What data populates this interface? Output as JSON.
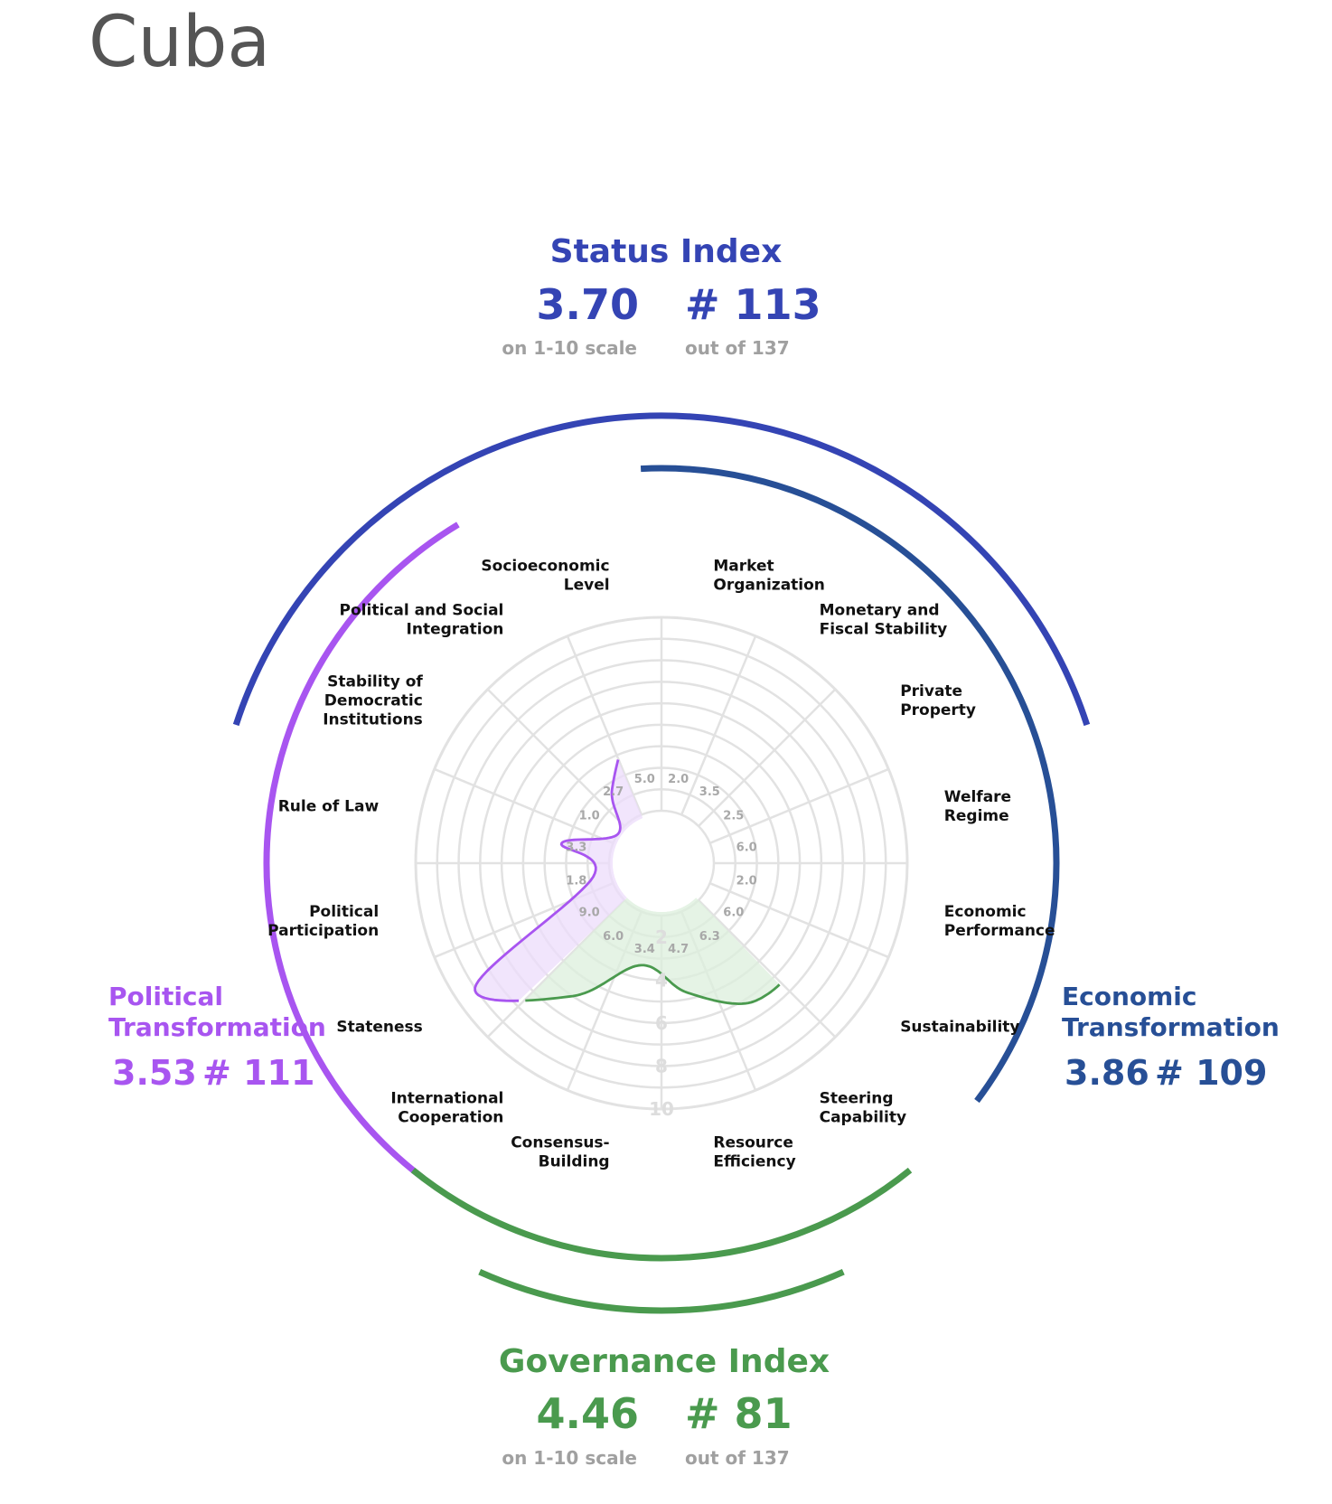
{
  "title": "Cuba",
  "status_index": {
    "label": "Status Index",
    "score": "3.70",
    "rank": "# 113",
    "score_note": "on 1-10 scale",
    "rank_note": "out of 137",
    "color": "#3444b4"
  },
  "governance_index": {
    "label": "Governance Index",
    "score": "4.46",
    "rank": "# 81",
    "score_note": "on 1-10 scale",
    "rank_note": "out of 137",
    "color": "#4a9a4e"
  },
  "political_transformation": {
    "label_line1": "Political",
    "label_line2": "Transformation",
    "score": "3.53",
    "rank": "# 111",
    "color": "#a855f0"
  },
  "economic_transformation": {
    "label_line1": "Economic",
    "label_line2": "Transformation",
    "score": "3.86",
    "rank": "# 109",
    "color": "#274f96"
  },
  "chart_data": {
    "type": "radar",
    "scale": [
      1,
      10
    ],
    "ring_labels": [
      "2",
      "4",
      "6",
      "8",
      "10"
    ],
    "categories": [
      {
        "label": [
          "Market",
          "Organization"
        ],
        "value": 2.0,
        "score": "2.0",
        "group": "economic"
      },
      {
        "label": [
          "Monetary and",
          "Fiscal Stability"
        ],
        "value": 3.5,
        "score": "3.5",
        "group": "economic"
      },
      {
        "label": [
          "Private",
          "Property"
        ],
        "value": 2.5,
        "score": "2.5",
        "group": "economic"
      },
      {
        "label": [
          "Welfare",
          "Regime"
        ],
        "value": 6.0,
        "score": "6.0",
        "group": "economic"
      },
      {
        "label": [
          "Economic",
          "Performance"
        ],
        "value": 2.0,
        "score": "2.0",
        "group": "economic"
      },
      {
        "label": [
          "Sustainability"
        ],
        "value": 6.0,
        "score": "6.0",
        "group": "economic"
      },
      {
        "label": [
          "Steering",
          "Capability"
        ],
        "value": 6.3,
        "score": "6.3",
        "group": "governance"
      },
      {
        "label": [
          "Resource",
          "Efficiency"
        ],
        "value": 4.7,
        "score": "4.7",
        "group": "governance"
      },
      {
        "label": [
          "Consensus-",
          "Building"
        ],
        "value": 3.4,
        "score": "3.4",
        "group": "governance"
      },
      {
        "label": [
          "International",
          "Cooperation"
        ],
        "value": 6.0,
        "score": "6.0",
        "group": "governance"
      },
      {
        "label": [
          "Stateness"
        ],
        "value": 9.0,
        "score": "9.0",
        "group": "political"
      },
      {
        "label": [
          "Political",
          "Participation"
        ],
        "value": 1.8,
        "score": "1.8",
        "group": "political"
      },
      {
        "label": [
          "Rule of Law"
        ],
        "value": 3.3,
        "score": "3.3",
        "group": "political"
      },
      {
        "label": [
          "Stability of",
          "Democratic",
          "Institutions"
        ],
        "value": 1.0,
        "score": "1.0",
        "group": "political"
      },
      {
        "label": [
          "Political and Social",
          "Integration"
        ],
        "value": 2.7,
        "score": "2.7",
        "group": "political"
      },
      {
        "label": [
          "Socioeconomic",
          "Level"
        ],
        "value": 5.0,
        "score": "5.0",
        "group": "economic"
      }
    ],
    "group_colors": {
      "political": {
        "line": "#a855f0",
        "fill": "#ecdcfb"
      },
      "economic": {
        "line": "#274f96",
        "fill": "#c9d6ea"
      },
      "governance": {
        "line": "#4a9a4e",
        "fill": "#dcefdc"
      }
    }
  }
}
